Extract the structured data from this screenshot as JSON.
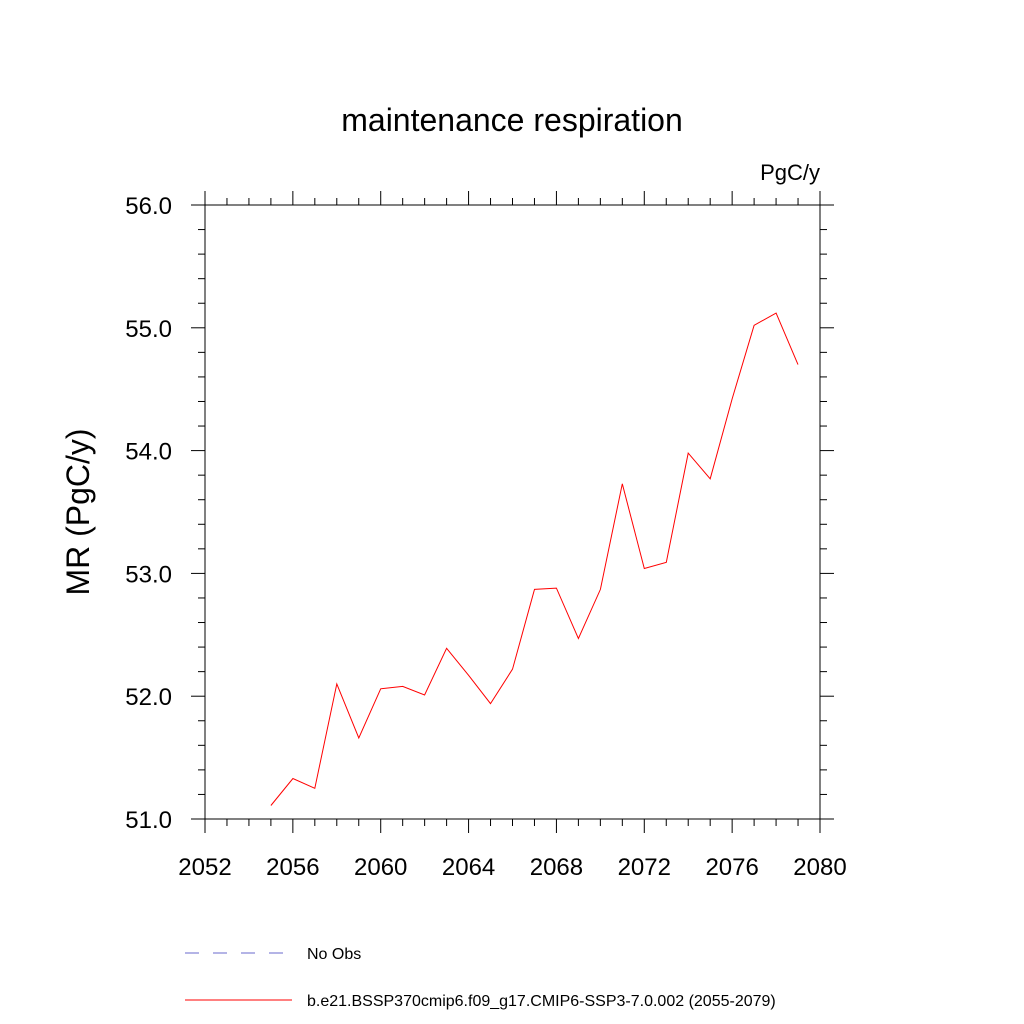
{
  "chart_data": {
    "type": "line",
    "title": "maintenance respiration",
    "units_label": "PgC/y",
    "ylabel": "MR  (PgC/y)",
    "xlabel": "",
    "xlim": [
      2052,
      2080
    ],
    "ylim": [
      51.0,
      56.0
    ],
    "xticks": [
      "2052",
      "2056",
      "2060",
      "2064",
      "2068",
      "2072",
      "2076",
      "2080"
    ],
    "yticks": [
      "51.0",
      "52.0",
      "53.0",
      "54.0",
      "55.0",
      "56.0"
    ],
    "grid": false,
    "series": [
      {
        "name": "b.e21.BSSP370cmip6.f09_g17.CMIP6-SSP3-7.0.002 (2055-2079)",
        "color": "#ff0000",
        "x": [
          2055,
          2056,
          2057,
          2058,
          2059,
          2060,
          2061,
          2062,
          2063,
          2064,
          2065,
          2066,
          2067,
          2068,
          2069,
          2070,
          2071,
          2072,
          2073,
          2074,
          2075,
          2076,
          2077,
          2078,
          2079
        ],
        "y": [
          51.11,
          51.33,
          51.25,
          52.1,
          51.66,
          52.06,
          52.08,
          52.01,
          52.39,
          52.17,
          51.94,
          52.22,
          52.87,
          52.88,
          52.47,
          52.87,
          53.73,
          53.04,
          53.09,
          53.98,
          53.77,
          54.42,
          55.02,
          55.12,
          54.7
        ]
      }
    ],
    "legend": [
      {
        "label": "No Obs",
        "style": "dashed",
        "color": "#6a6acd"
      },
      {
        "label": "b.e21.BSSP370cmip6.f09_g17.CMIP6-SSP3-7.0.002 (2055-2079)",
        "style": "solid",
        "color": "#ff0000"
      }
    ]
  }
}
